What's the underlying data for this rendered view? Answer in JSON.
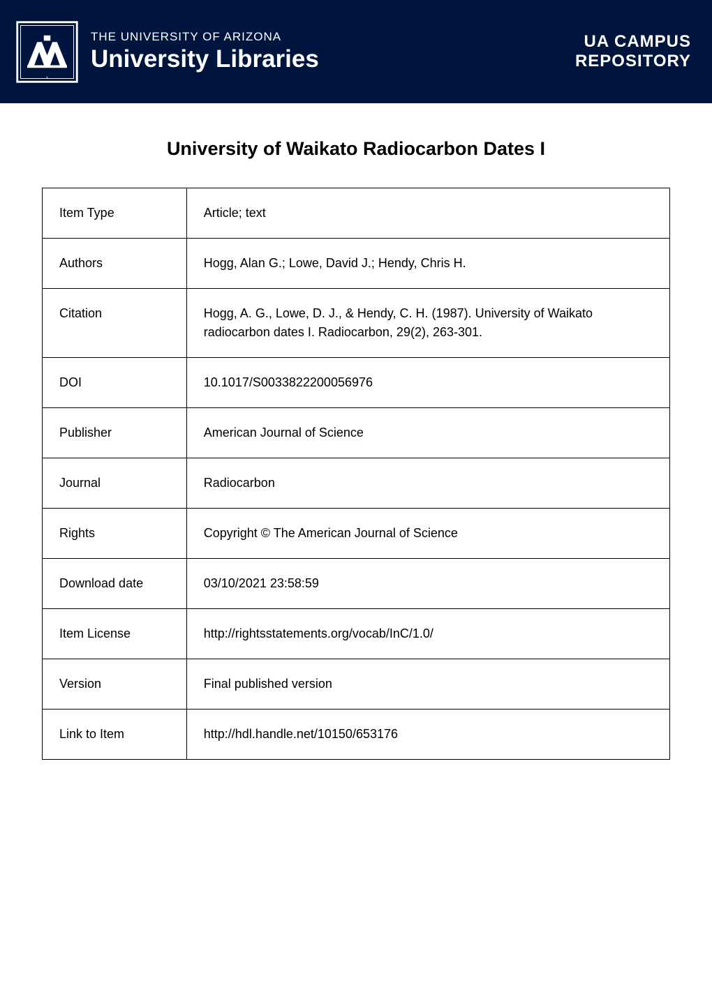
{
  "header": {
    "university_name": "THE UNIVERSITY OF ARIZONA",
    "libraries_title": "University Libraries",
    "campus_text": "UA CAMPUS",
    "repository_text": "REPOSITORY",
    "banner_bg_color": "#00153e",
    "text_color": "#ffffff"
  },
  "title": "University of Waikato Radiocarbon Dates I",
  "metadata_table": {
    "border_color": "#000000",
    "label_column_width": "23%",
    "link_color": "#00557f",
    "text_color": "#000000",
    "cell_padding": "22px 24px",
    "font_size": 18,
    "rows": [
      {
        "label": "Item Type",
        "value": "Article; text",
        "is_link": false
      },
      {
        "label": "Authors",
        "value": "Hogg, Alan G.; Lowe, David J.; Hendy, Chris H.",
        "is_link": false
      },
      {
        "label": "Citation",
        "value": "Hogg, A. G., Lowe, D. J., & Hendy, C. H. (1987). University of Waikato radiocarbon dates I. Radiocarbon, 29(2), 263-301.",
        "is_link": false
      },
      {
        "label": "DOI",
        "value": "10.1017/S0033822200056976",
        "is_link": true
      },
      {
        "label": "Publisher",
        "value": "American Journal of Science",
        "is_link": false
      },
      {
        "label": "Journal",
        "value": "Radiocarbon",
        "is_link": false
      },
      {
        "label": "Rights",
        "value": "Copyright © The American Journal of Science",
        "is_link": false
      },
      {
        "label": "Download date",
        "value": "03/10/2021 23:58:59",
        "is_link": false
      },
      {
        "label": "Item License",
        "value": "http://rightsstatements.org/vocab/InC/1.0/",
        "is_link": true
      },
      {
        "label": "Version",
        "value": "Final published version",
        "is_link": false
      },
      {
        "label": "Link to Item",
        "value": "http://hdl.handle.net/10150/653176",
        "is_link": true
      }
    ]
  }
}
